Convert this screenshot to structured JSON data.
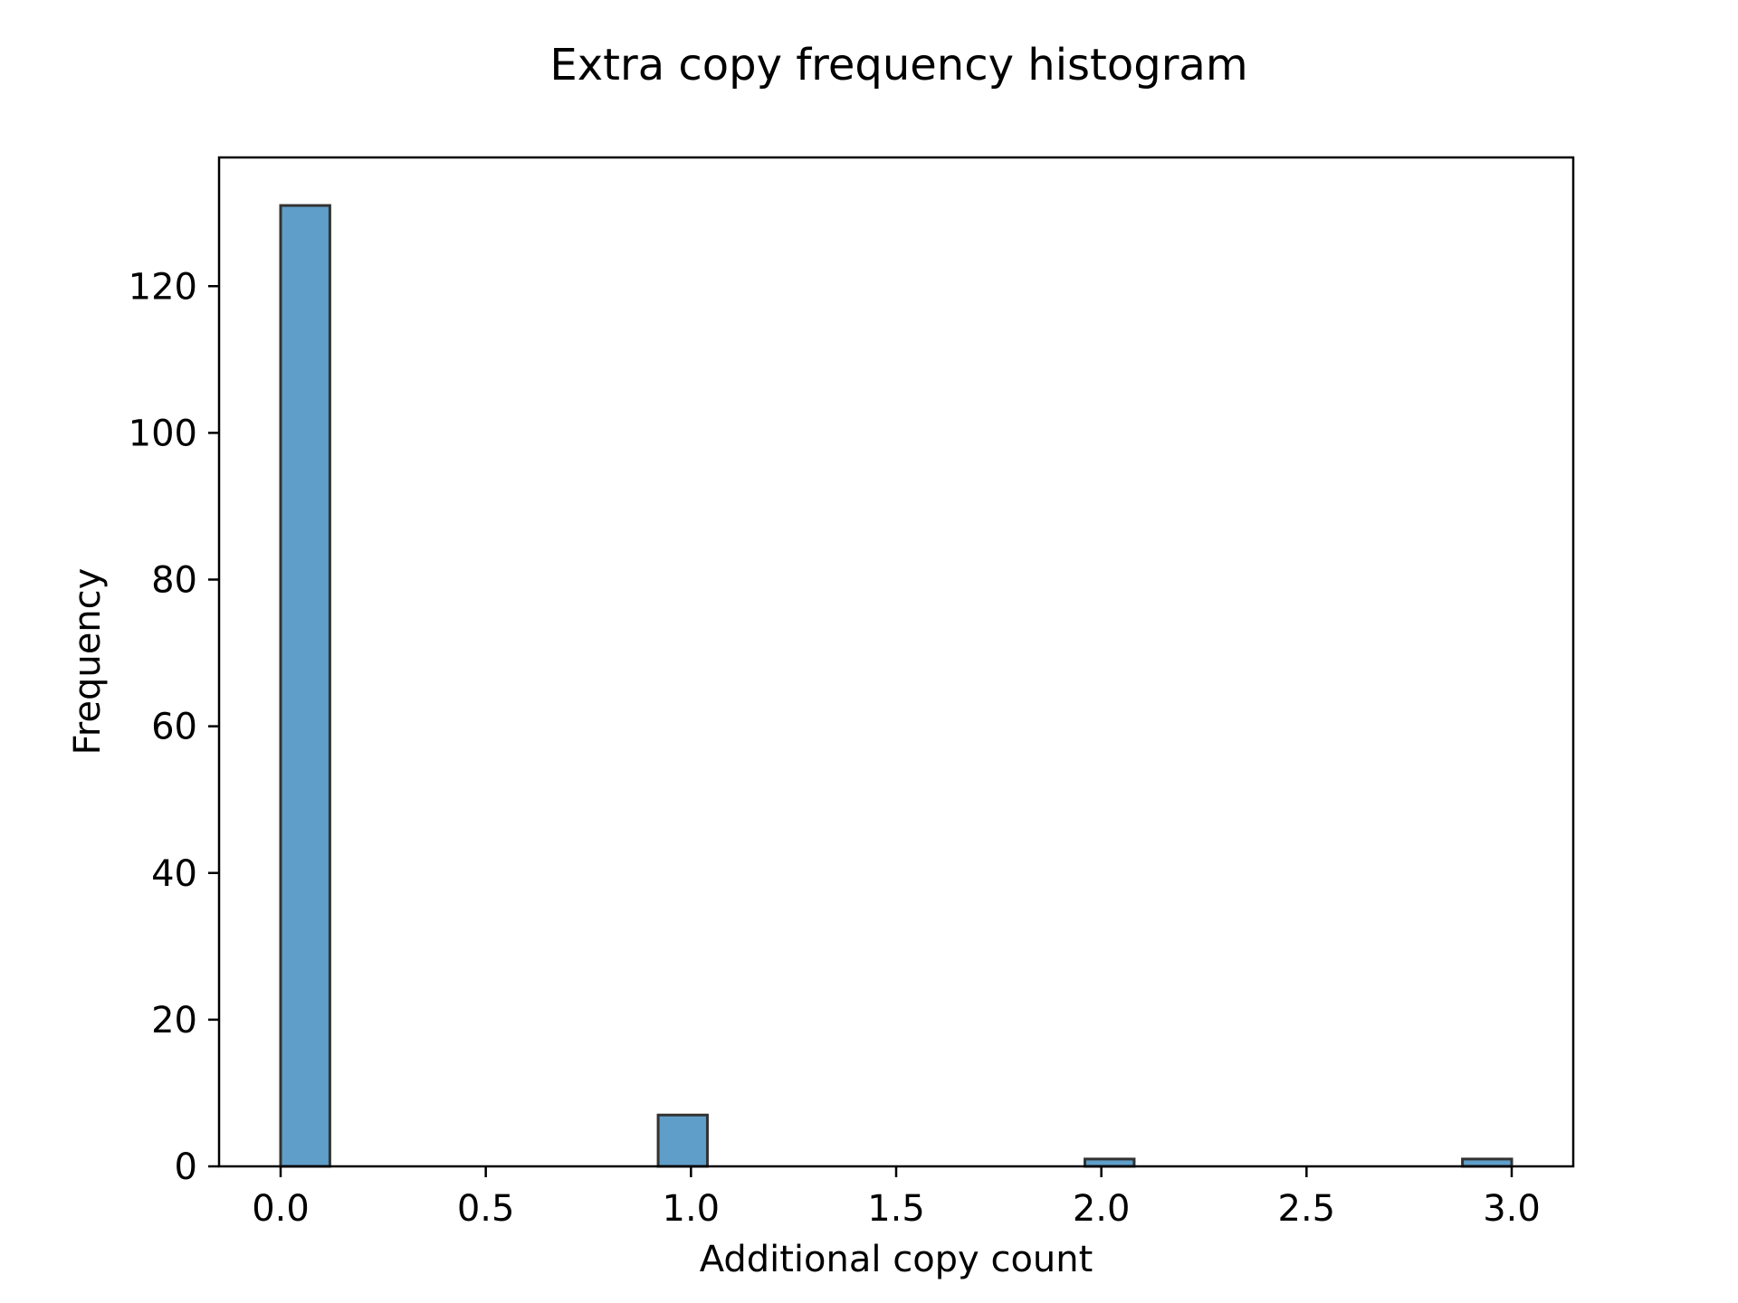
{
  "chart_data": {
    "type": "bar",
    "title": "Extra copy frequency histogram",
    "xlabel": "Additional copy count",
    "ylabel": "Frequency",
    "bins": [
      {
        "x_start": 0.0,
        "x_end": 0.12,
        "count": 131
      },
      {
        "x_start": 0.12,
        "x_end": 0.24,
        "count": 0
      },
      {
        "x_start": 0.24,
        "x_end": 0.36,
        "count": 0
      },
      {
        "x_start": 0.36,
        "x_end": 0.48,
        "count": 0
      },
      {
        "x_start": 0.48,
        "x_end": 0.6,
        "count": 0
      },
      {
        "x_start": 0.6,
        "x_end": 0.72,
        "count": 0
      },
      {
        "x_start": 0.72,
        "x_end": 0.84,
        "count": 0
      },
      {
        "x_start": 0.84,
        "x_end": 0.96,
        "count": 0
      },
      {
        "x_start": 0.92,
        "x_end": 1.04,
        "count": 7
      },
      {
        "x_start": 1.04,
        "x_end": 1.16,
        "count": 0
      },
      {
        "x_start": 1.16,
        "x_end": 1.28,
        "count": 0
      },
      {
        "x_start": 1.28,
        "x_end": 1.4,
        "count": 0
      },
      {
        "x_start": 1.4,
        "x_end": 1.52,
        "count": 0
      },
      {
        "x_start": 1.52,
        "x_end": 1.64,
        "count": 0
      },
      {
        "x_start": 1.64,
        "x_end": 1.76,
        "count": 0
      },
      {
        "x_start": 1.76,
        "x_end": 1.88,
        "count": 0
      },
      {
        "x_start": 1.96,
        "x_end": 2.08,
        "count": 1
      },
      {
        "x_start": 2.08,
        "x_end": 2.2,
        "count": 0
      },
      {
        "x_start": 2.2,
        "x_end": 2.32,
        "count": 0
      },
      {
        "x_start": 2.32,
        "x_end": 2.44,
        "count": 0
      },
      {
        "x_start": 2.44,
        "x_end": 2.56,
        "count": 0
      },
      {
        "x_start": 2.56,
        "x_end": 2.68,
        "count": 0
      },
      {
        "x_start": 2.68,
        "x_end": 2.8,
        "count": 0
      },
      {
        "x_start": 2.88,
        "x_end": 3.0,
        "count": 1
      }
    ],
    "x_ticks": [
      "0.0",
      "0.5",
      "1.0",
      "1.5",
      "2.0",
      "2.5",
      "3.0"
    ],
    "x_tick_values": [
      0.0,
      0.5,
      1.0,
      1.5,
      2.0,
      2.5,
      3.0
    ],
    "y_ticks": [
      "0",
      "20",
      "40",
      "60",
      "80",
      "100",
      "120"
    ],
    "y_tick_values": [
      0,
      20,
      40,
      60,
      80,
      100,
      120
    ],
    "xlim": [
      -0.15,
      3.15
    ],
    "ylim": [
      0,
      137.55
    ],
    "grid": false,
    "colors": {
      "bar_fill": "#5f9ec9",
      "bar_edge": "#333333",
      "axis": "#000000"
    }
  }
}
